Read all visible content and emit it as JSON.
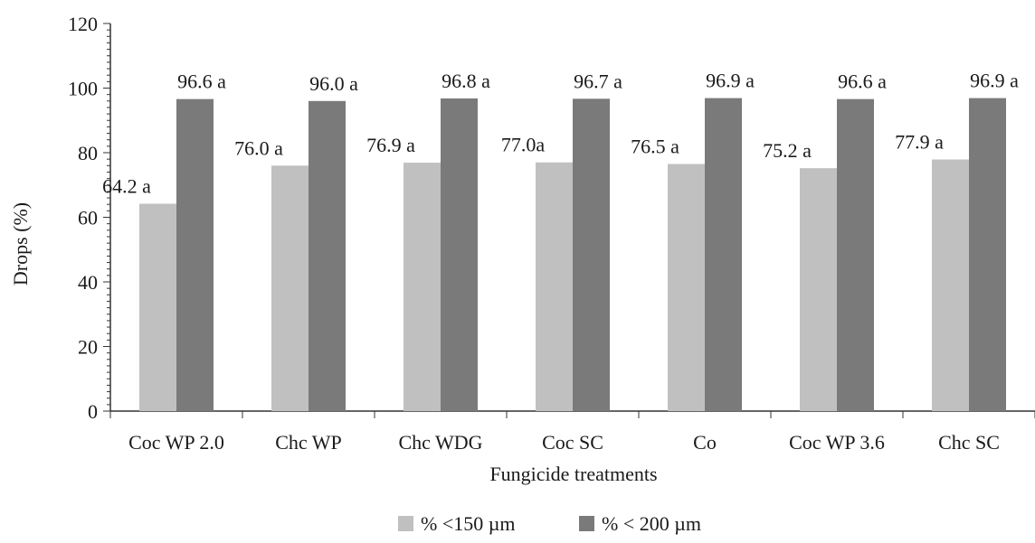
{
  "chart_data": {
    "type": "bar",
    "title": "",
    "xlabel": "Fungicide treatments",
    "ylabel": "Drops (%)",
    "ylim": [
      0,
      120
    ],
    "yticks": [
      0,
      20,
      40,
      60,
      80,
      100,
      120
    ],
    "grid": false,
    "legend_position": "bottom",
    "categories": [
      "Coc WP 2.0",
      "Chc WP",
      "Chc WDG",
      "Coc SC",
      "Co",
      "Coc WP 3.6",
      "Chc SC"
    ],
    "series": [
      {
        "name": "% <150 µm",
        "color": "#c0c0c0",
        "values": [
          64.2,
          76.0,
          76.9,
          77.0,
          76.5,
          75.2,
          77.9
        ],
        "labels": [
          "64.2 a",
          "76.0 a",
          "76.9 a",
          "77.0a",
          "76.5 a",
          "75.2 a",
          "77.9 a"
        ]
      },
      {
        "name": "% < 200 µm",
        "color": "#7a7a7a",
        "values": [
          96.6,
          96.0,
          96.8,
          96.7,
          96.9,
          96.6,
          96.9
        ],
        "labels": [
          "96.6 a",
          "96.0 a",
          "96.8 a",
          "96.7 a",
          "96.9 a",
          "96.6 a",
          "96.9 a"
        ]
      }
    ]
  }
}
